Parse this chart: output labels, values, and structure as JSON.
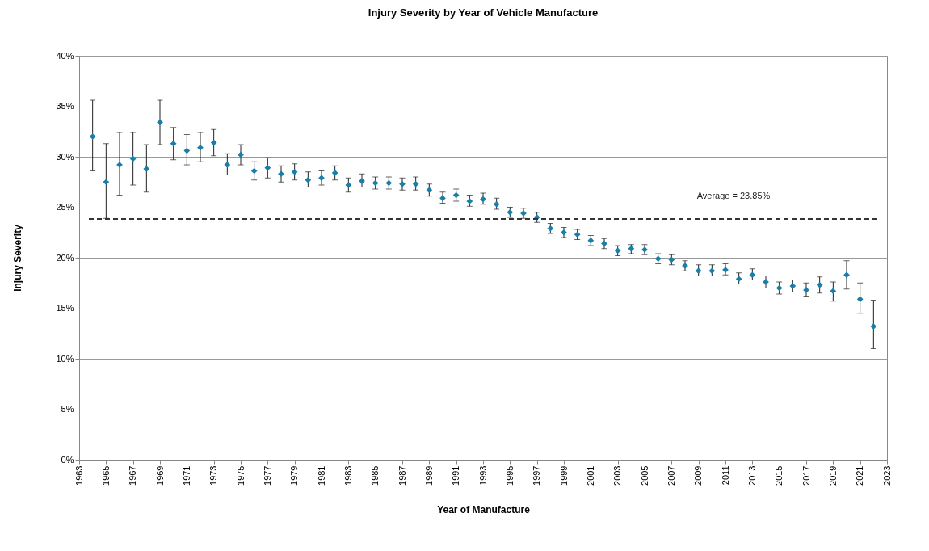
{
  "chart_data": {
    "type": "scatter",
    "title": "Injury Severity by Year of Vehicle Manufacture",
    "xlabel": "Year of Manufacture",
    "ylabel": "Injury Severity",
    "x": [
      1964,
      1965,
      1966,
      1967,
      1968,
      1969,
      1970,
      1971,
      1972,
      1973,
      1974,
      1975,
      1976,
      1977,
      1978,
      1979,
      1980,
      1981,
      1982,
      1983,
      1984,
      1985,
      1986,
      1987,
      1988,
      1989,
      1990,
      1991,
      1992,
      1993,
      1994,
      1995,
      1996,
      1997,
      1998,
      1999,
      2000,
      2001,
      2002,
      2003,
      2004,
      2005,
      2006,
      2007,
      2008,
      2009,
      2010,
      2011,
      2012,
      2013,
      2014,
      2015,
      2016,
      2017,
      2018,
      2019,
      2020,
      2021,
      2022
    ],
    "series": [
      {
        "color": "#1a7fa8",
        "values": [
          32.0,
          27.5,
          29.2,
          29.8,
          28.8,
          33.4,
          31.3,
          30.6,
          30.9,
          31.4,
          29.2,
          30.2,
          28.6,
          28.9,
          28.3,
          28.5,
          27.7,
          27.9,
          28.4,
          27.2,
          27.6,
          27.4,
          27.4,
          27.3,
          27.3,
          26.7,
          25.9,
          26.2,
          25.6,
          25.8,
          25.3,
          24.5,
          24.4,
          24.0,
          22.9,
          22.5,
          22.3,
          21.7,
          21.4,
          20.7,
          20.9,
          20.8,
          19.9,
          19.8,
          19.2,
          18.7,
          18.7,
          18.8,
          17.9,
          18.3,
          17.6,
          17.0,
          17.2,
          16.8,
          17.3,
          16.7,
          18.3,
          15.9,
          13.2
        ],
        "errors": [
          [
            28.6,
            35.6
          ],
          [
            23.9,
            31.3
          ],
          [
            26.2,
            32.4
          ],
          [
            27.2,
            32.4
          ],
          [
            26.5,
            31.2
          ],
          [
            31.2,
            35.6
          ],
          [
            29.7,
            32.9
          ],
          [
            29.2,
            32.2
          ],
          [
            29.5,
            32.4
          ],
          [
            30.1,
            32.7
          ],
          [
            28.2,
            30.3
          ],
          [
            29.2,
            31.2
          ],
          [
            27.7,
            29.5
          ],
          [
            27.9,
            29.9
          ],
          [
            27.5,
            29.1
          ],
          [
            27.7,
            29.3
          ],
          [
            27.0,
            28.5
          ],
          [
            27.2,
            28.6
          ],
          [
            27.7,
            29.1
          ],
          [
            26.5,
            27.9
          ],
          [
            27.0,
            28.3
          ],
          [
            26.8,
            28.0
          ],
          [
            26.8,
            28.0
          ],
          [
            26.7,
            27.9
          ],
          [
            26.7,
            28.0
          ],
          [
            26.1,
            27.3
          ],
          [
            25.4,
            26.5
          ],
          [
            25.6,
            26.8
          ],
          [
            25.1,
            26.2
          ],
          [
            25.3,
            26.4
          ],
          [
            24.8,
            25.9
          ],
          [
            24.0,
            25.0
          ],
          [
            23.9,
            24.9
          ],
          [
            23.5,
            24.5
          ],
          [
            22.4,
            23.4
          ],
          [
            22.0,
            23.0
          ],
          [
            21.8,
            22.8
          ],
          [
            21.2,
            22.2
          ],
          [
            20.9,
            21.9
          ],
          [
            20.2,
            21.2
          ],
          [
            20.4,
            21.3
          ],
          [
            20.3,
            21.3
          ],
          [
            19.4,
            20.4
          ],
          [
            19.3,
            20.3
          ],
          [
            18.7,
            19.7
          ],
          [
            18.2,
            19.3
          ],
          [
            18.2,
            19.3
          ],
          [
            18.3,
            19.4
          ],
          [
            17.4,
            18.5
          ],
          [
            17.8,
            18.9
          ],
          [
            17.0,
            18.2
          ],
          [
            16.4,
            17.6
          ],
          [
            16.6,
            17.8
          ],
          [
            16.2,
            17.5
          ],
          [
            16.5,
            18.1
          ],
          [
            15.7,
            17.6
          ],
          [
            16.9,
            19.7
          ],
          [
            14.5,
            17.5
          ],
          [
            11.0,
            15.8
          ]
        ]
      }
    ],
    "xlim": [
      1963,
      2023
    ],
    "xticks": [
      1963,
      1965,
      1967,
      1969,
      1971,
      1973,
      1975,
      1977,
      1979,
      1981,
      1983,
      1985,
      1987,
      1989,
      1991,
      1993,
      1995,
      1997,
      1999,
      2001,
      2003,
      2005,
      2007,
      2009,
      2011,
      2013,
      2015,
      2017,
      2019,
      2021,
      2023
    ],
    "ylim": [
      0,
      40
    ],
    "yticks": [
      {
        "value": 0,
        "label": "0%"
      },
      {
        "value": 5,
        "label": "5%"
      },
      {
        "value": 10,
        "label": "10%"
      },
      {
        "value": 15,
        "label": "15%"
      },
      {
        "value": 20,
        "label": "20%"
      },
      {
        "value": 25,
        "label": "25%"
      },
      {
        "value": 30,
        "label": "30%"
      },
      {
        "value": 35,
        "label": "35%"
      },
      {
        "value": 40,
        "label": "40%"
      }
    ],
    "ref_lines": [
      {
        "axis": "y",
        "value": 23.85,
        "label": "Average = 23.85%",
        "color": "#333333",
        "line_style": "dashed"
      }
    ],
    "grid": "y",
    "marker": "diamond"
  }
}
